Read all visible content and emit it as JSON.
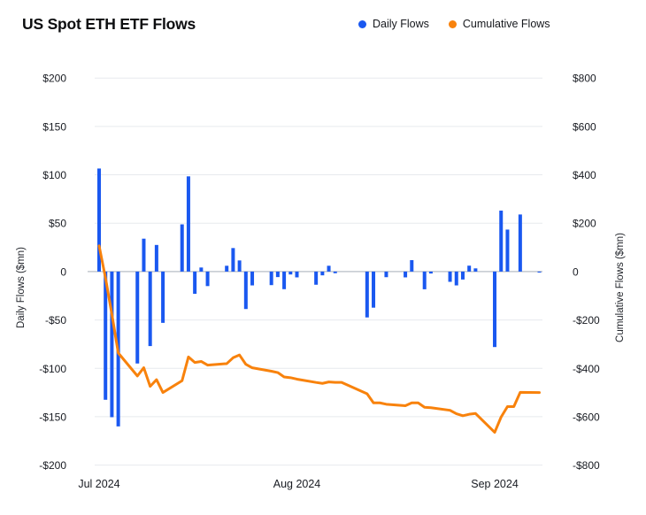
{
  "header": {
    "title": "US Spot ETH ETF Flows"
  },
  "chart_data": {
    "type": "bar+line",
    "title": "US Spot ETH ETF Flows",
    "legend_position": "top-right",
    "grid": true,
    "x": [
      "2024-07-23",
      "2024-07-24",
      "2024-07-25",
      "2024-07-26",
      "2024-07-29",
      "2024-07-30",
      "2024-07-31",
      "2024-08-01",
      "2024-08-02",
      "2024-08-05",
      "2024-08-06",
      "2024-08-07",
      "2024-08-08",
      "2024-08-09",
      "2024-08-12",
      "2024-08-13",
      "2024-08-14",
      "2024-08-15",
      "2024-08-16",
      "2024-08-19",
      "2024-08-20",
      "2024-08-21",
      "2024-08-22",
      "2024-08-23",
      "2024-08-26",
      "2024-08-27",
      "2024-08-28",
      "2024-08-29",
      "2024-08-30",
      "2024-09-03",
      "2024-09-04",
      "2024-09-05",
      "2024-09-06",
      "2024-09-09",
      "2024-09-10",
      "2024-09-11",
      "2024-09-12",
      "2024-09-13",
      "2024-09-16",
      "2024-09-17",
      "2024-09-18",
      "2024-09-19",
      "2024-09-20",
      "2024-09-23",
      "2024-09-24",
      "2024-09-25",
      "2024-09-26",
      "2024-09-27",
      "2024-09-30"
    ],
    "series": [
      {
        "name": "Daily Flows",
        "type": "bar",
        "axis": "left",
        "color": "#1a58f0",
        "values": [
          106.5,
          -132.5,
          -150.5,
          -160.0,
          -95.0,
          34.0,
          -77.0,
          27.5,
          -53.0,
          48.8,
          98.4,
          -23.0,
          4.2,
          -15.0,
          6.0,
          24.3,
          11.5,
          -38.7,
          -14.3,
          -14.0,
          -5.7,
          -18.2,
          -3.0,
          -6.0,
          -13.6,
          -3.9,
          6.0,
          -1.7,
          0.0,
          -47.4,
          -37.3,
          0.0,
          -5.8,
          -6.0,
          11.8,
          0.0,
          -18.3,
          -2.0,
          -10.6,
          -14.3,
          -8.2,
          6.1,
          3.3,
          -78.0,
          63.0,
          43.4,
          0.0,
          59.0,
          -1.0
        ]
      },
      {
        "name": "Cumulative Flows",
        "type": "line",
        "axis": "right",
        "color": "#f8820c",
        "values": [
          106.5,
          -26.0,
          -176.5,
          -336.5,
          -431.5,
          -397.5,
          -474.5,
          -447.0,
          -500.0,
          -451.2,
          -352.8,
          -375.8,
          -371.6,
          -386.6,
          -380.6,
          -356.3,
          -344.8,
          -383.5,
          -397.8,
          -411.8,
          -417.5,
          -435.7,
          -438.7,
          -444.7,
          -458.3,
          -462.2,
          -456.2,
          -457.9,
          -457.9,
          -505.3,
          -542.6,
          -542.6,
          -548.4,
          -554.4,
          -542.6,
          -542.6,
          -560.9,
          -562.9,
          -573.5,
          -587.8,
          -596.0,
          -589.9,
          -586.6,
          -664.6,
          -601.6,
          -558.2,
          -558.2,
          -499.2,
          -500.2
        ]
      }
    ],
    "left_axis": {
      "label": "Daily Flows ($mn)",
      "range": [
        -200,
        200
      ],
      "ticks": [
        "$200",
        "$150",
        "$100",
        "$50",
        "0",
        "-$50",
        "-$100",
        "-$150",
        "-$200"
      ]
    },
    "right_axis": {
      "label": "Cumulative Flows ($mn)",
      "range": [
        -800,
        800
      ],
      "ticks": [
        "$800",
        "$600",
        "$400",
        "$200",
        "0",
        "-$200",
        "-$400",
        "-$600",
        "-$800"
      ]
    },
    "x_axis": {
      "ticks": [
        "Jul 2024",
        "Aug 2024",
        "Sep 2024"
      ]
    },
    "colors": {
      "background": "#ffffff",
      "gridline": "#e7eaee",
      "zero_line": "#c3c8cf",
      "tick_text": "#181b22"
    }
  }
}
